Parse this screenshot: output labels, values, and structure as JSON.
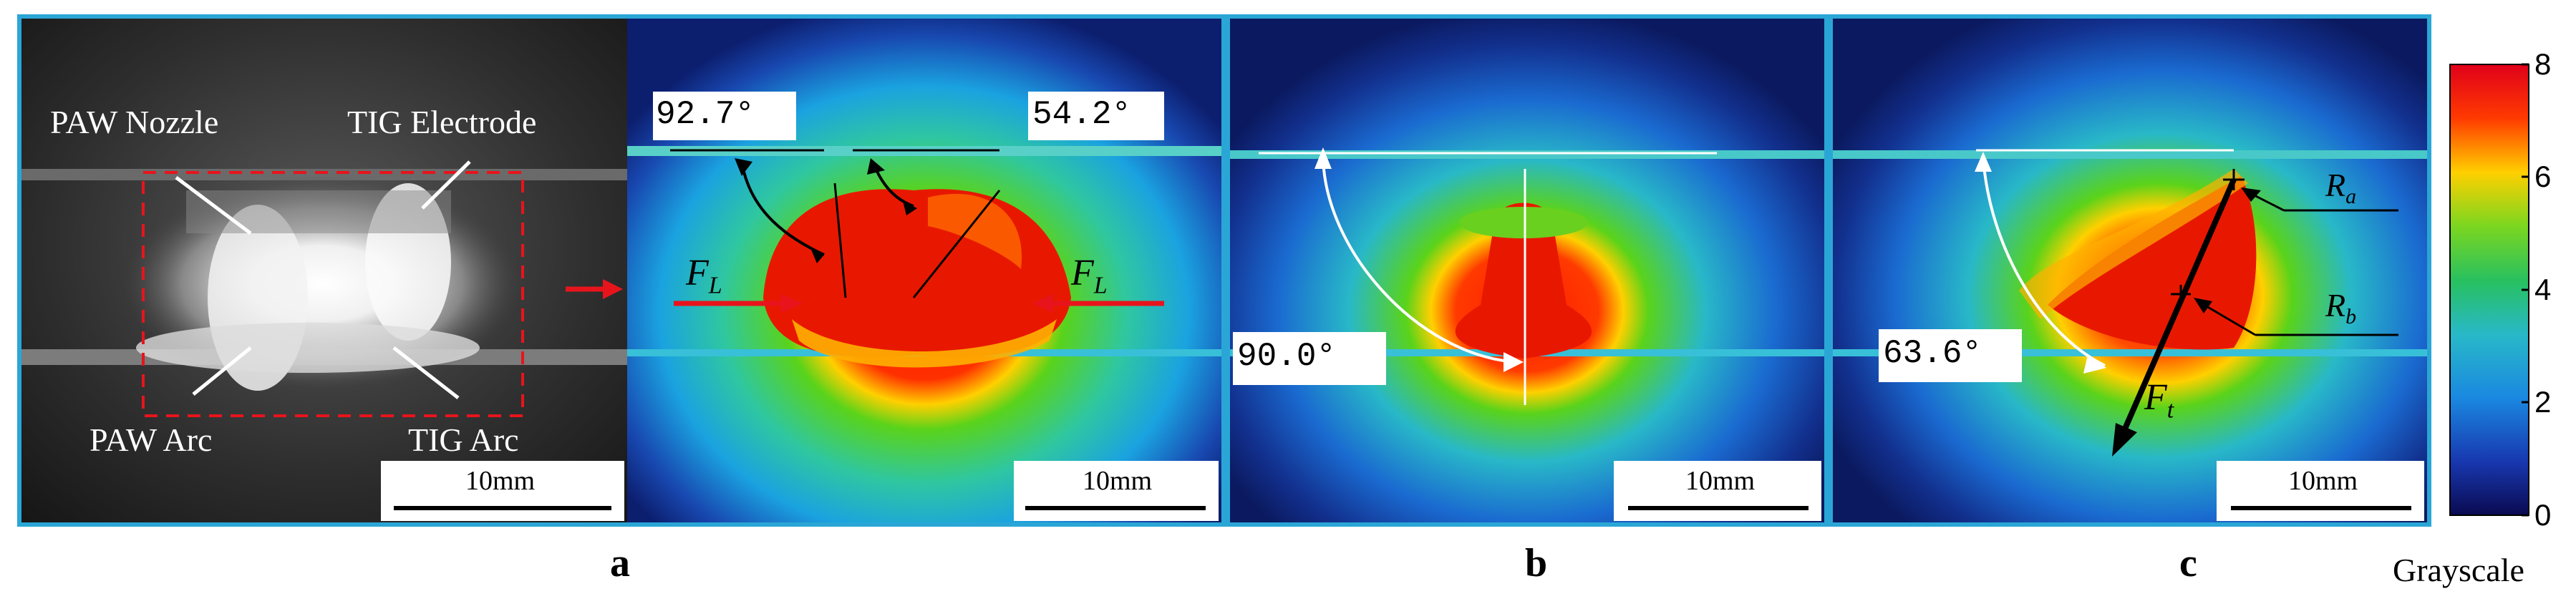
{
  "panels": {
    "a_left": {
      "labels": {
        "paw_nozzle": "PAW Nozzle",
        "tig_electrode": "TIG Electrode",
        "paw_arc": "PAW Arc",
        "tig_arc": "TIG Arc"
      },
      "scale_bar": "10mm"
    },
    "a_right": {
      "angle_left": "92.7°",
      "angle_right": "54.2°",
      "force_label": "F",
      "force_subscript": "L",
      "scale_bar": "10mm"
    },
    "b": {
      "angle": "90.0°",
      "scale_bar": "10mm"
    },
    "c": {
      "angle": "63.6°",
      "force_label": "F",
      "force_subscript": "t",
      "ra_label": "R",
      "ra_subscript": "a",
      "rb_label": "R",
      "rb_subscript": "b",
      "scale_bar": "10mm"
    }
  },
  "sublabels": {
    "a": "a",
    "b": "b",
    "c": "c"
  },
  "colorbar": {
    "title": "Grayscale",
    "ticks": [
      "8",
      "6",
      "4",
      "2",
      "0"
    ],
    "range": [
      0,
      8
    ]
  },
  "colors": {
    "frame": "#2aa6d6",
    "arrow_red": "#e8141c"
  }
}
